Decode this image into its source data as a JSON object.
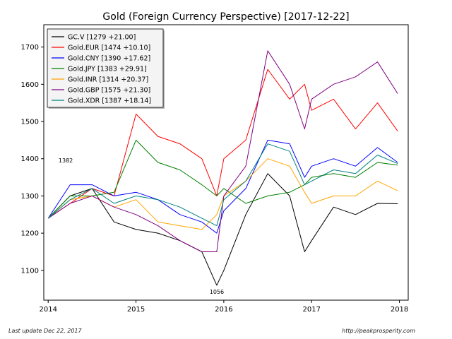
{
  "chart_data": {
    "type": "line",
    "title": "Gold (Foreign Currency Perspective)  [2017-12-22]",
    "xlabel": "",
    "ylabel": "",
    "xlim": [
      2013.95,
      2018.1
    ],
    "ylim": [
      1020,
      1760
    ],
    "x_ticks": [
      2014,
      2015,
      2016,
      2017,
      2018
    ],
    "x_tick_labels": [
      "2014",
      "2015",
      "2016",
      "2017",
      "2018"
    ],
    "y_ticks": [
      1100,
      1200,
      1300,
      1400,
      1500,
      1600,
      1700
    ],
    "grid": false,
    "legend_position": "top-left",
    "annotations": [
      {
        "text": "1382",
        "x": 2014.2,
        "y": 1382
      },
      {
        "text": "1056",
        "x": 2015.92,
        "y": 1056
      }
    ],
    "x": [
      2014.0,
      2014.25,
      2014.5,
      2014.75,
      2015.0,
      2015.25,
      2015.5,
      2015.75,
      2015.92,
      2016.0,
      2016.25,
      2016.5,
      2016.75,
      2016.92,
      2017.0,
      2017.25,
      2017.5,
      2017.75,
      2017.98
    ],
    "series": [
      {
        "name": "GC.V [1279 +21.00]",
        "color": "#000000",
        "values": [
          1240,
          1300,
          1320,
          1230,
          1210,
          1200,
          1180,
          1150,
          1060,
          1100,
          1250,
          1360,
          1300,
          1150,
          1180,
          1270,
          1250,
          1280,
          1279
        ]
      },
      {
        "name": "Gold.EUR [1474 +10.10]",
        "color": "#ff0000",
        "values": [
          1240,
          1280,
          1320,
          1300,
          1520,
          1460,
          1440,
          1400,
          1300,
          1400,
          1450,
          1640,
          1560,
          1600,
          1530,
          1560,
          1480,
          1550,
          1474
        ]
      },
      {
        "name": "Gold.CNY [1390 +17.62]",
        "color": "#0000ff",
        "values": [
          1240,
          1330,
          1330,
          1300,
          1310,
          1290,
          1250,
          1230,
          1200,
          1260,
          1320,
          1450,
          1440,
          1350,
          1380,
          1400,
          1380,
          1430,
          1390
        ]
      },
      {
        "name": "Gold.JPY [1383 +29.91]",
        "color": "#008000",
        "values": [
          1240,
          1300,
          1300,
          1310,
          1450,
          1390,
          1370,
          1330,
          1300,
          1320,
          1280,
          1300,
          1310,
          1330,
          1350,
          1360,
          1350,
          1390,
          1383
        ]
      },
      {
        "name": "Gold.INR [1314 +20.37]",
        "color": "#ffa500",
        "values": [
          1240,
          1290,
          1300,
          1270,
          1290,
          1230,
          1220,
          1210,
          1250,
          1300,
          1340,
          1400,
          1380,
          1310,
          1280,
          1300,
          1300,
          1340,
          1314
        ]
      },
      {
        "name": "Gold.GBP [1575 +21.30]",
        "color": "#800080",
        "values": [
          1240,
          1280,
          1300,
          1270,
          1250,
          1220,
          1180,
          1150,
          1150,
          1300,
          1380,
          1690,
          1600,
          1480,
          1560,
          1600,
          1620,
          1660,
          1575
        ]
      },
      {
        "name": "Gold.XDR [1387 +18.14]",
        "color": "#008080",
        "values": [
          1240,
          1290,
          1320,
          1280,
          1300,
          1290,
          1270,
          1240,
          1220,
          1290,
          1340,
          1440,
          1420,
          1330,
          1340,
          1370,
          1360,
          1410,
          1387
        ]
      }
    ]
  },
  "footer": {
    "left": "Last update Dec 22, 2017",
    "right": "http://peakprosperity.com"
  }
}
